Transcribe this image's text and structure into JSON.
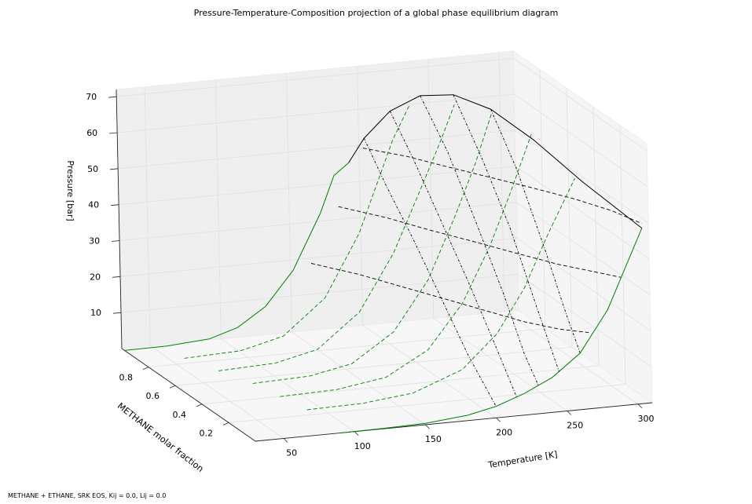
{
  "chart_data": {
    "type": "line3d",
    "title": "Pressure-Temperature-Composition projection of a global phase equilibrium diagram",
    "footnote": "METHANE + ETHANE, SRK EOS, Kij = 0.0, Lij = 0.0",
    "xlabel": "Temperature [K]",
    "ylabel": "METHANE molar fraction",
    "zlabel": "Pressure [bar]",
    "xlim": [
      30,
      310
    ],
    "ylim": [
      0,
      1
    ],
    "zlim": [
      0,
      72
    ],
    "xticks": [
      {
        "v": 50,
        "label": "50"
      },
      {
        "v": 100,
        "label": "100"
      },
      {
        "v": 150,
        "label": "150"
      },
      {
        "v": 200,
        "label": "200"
      },
      {
        "v": 250,
        "label": "250"
      },
      {
        "v": 300,
        "label": "300"
      }
    ],
    "yticks": [
      {
        "v": 0.2,
        "label": "0.2"
      },
      {
        "v": 0.4,
        "label": "0.4"
      },
      {
        "v": 0.6,
        "label": "0.6"
      },
      {
        "v": 0.8,
        "label": "0.8"
      }
    ],
    "zticks": [
      {
        "v": 10,
        "label": "10"
      },
      {
        "v": 20,
        "label": "20"
      },
      {
        "v": 30,
        "label": "30"
      },
      {
        "v": 40,
        "label": "40"
      },
      {
        "v": 50,
        "label": "50"
      },
      {
        "v": 60,
        "label": "60"
      },
      {
        "v": 70,
        "label": "70"
      }
    ],
    "grid": true,
    "colors": {
      "pure_vapor_pressure": "#008000",
      "critical_line": "#000000",
      "isopleth": "#008000",
      "isotherm": "#000000",
      "isobar": "#000000"
    },
    "series": {
      "pure_methane_vapor_pressure": {
        "x": 0.98,
        "T": [
          30,
          60,
          90,
          110,
          130,
          150,
          170,
          180,
          190.6
        ],
        "P": [
          0.0,
          0.1,
          0.9,
          3.3,
          8.4,
          17.7,
          32.8,
          42.8,
          46.0
        ]
      },
      "critical_line": {
        "T": [
          190.6,
          200,
          215,
          230,
          245,
          260,
          275,
          290,
          305.3
        ],
        "x": [
          0.98,
          0.96,
          0.92,
          0.85,
          0.76,
          0.64,
          0.48,
          0.28,
          0.0
        ],
        "P": [
          46.0,
          53.0,
          61.0,
          66.5,
          68.5,
          67.0,
          62.0,
          55.0,
          48.7
        ]
      },
      "pure_ethane_vapor_pressure": {
        "x": 0.0,
        "T": [
          90,
          120,
          150,
          180,
          200,
          220,
          240,
          260,
          280,
          305.3
        ],
        "P": [
          0.0,
          0.1,
          0.4,
          1.5,
          3.2,
          6.0,
          9.7,
          15.7,
          27.0,
          48.7
        ]
      },
      "isopleths": [
        {
          "x": 0.85,
          "T": [
            60,
            100,
            130,
            160,
            185,
            200,
            210,
            222
          ],
          "P": [
            0.0,
            0.6,
            3.5,
            13.0,
            30.0,
            45.0,
            55.0,
            64.0
          ]
        },
        {
          "x": 0.7,
          "T": [
            70,
            110,
            140,
            170,
            195,
            215,
            230,
            240
          ],
          "P": [
            0.0,
            0.6,
            3.3,
            12.5,
            28.0,
            45.0,
            58.0,
            67.5
          ]
        },
        {
          "x": 0.55,
          "T": [
            80,
            120,
            150,
            180,
            205,
            225,
            240,
            252
          ],
          "P": [
            0.0,
            0.5,
            2.8,
            10.5,
            24.0,
            41.0,
            55.0,
            68.3
          ]
        },
        {
          "x": 0.4,
          "T": [
            85,
            125,
            160,
            190,
            215,
            235,
            250,
            266
          ],
          "P": [
            0.0,
            0.4,
            2.5,
            9.0,
            21.0,
            36.0,
            50.0,
            66.0
          ]
        },
        {
          "x": 0.25,
          "T": [
            90,
            130,
            165,
            200,
            225,
            245,
            262,
            282
          ],
          "P": [
            0.0,
            0.3,
            1.8,
            7.0,
            16.0,
            28.0,
            42.0,
            57.0
          ]
        }
      ],
      "isobars": [
        {
          "P": 20,
          "x": [
            0.95,
            0.8,
            0.65,
            0.5,
            0.35,
            0.2,
            0.1,
            0.04
          ],
          "T": [
            160,
            180,
            195,
            210,
            225,
            240,
            255,
            270
          ]
        },
        {
          "P": 35,
          "x": [
            0.95,
            0.8,
            0.65,
            0.5,
            0.35,
            0.2,
            0.1,
            0.02
          ],
          "T": [
            180,
            200,
            215,
            232,
            248,
            265,
            280,
            292
          ]
        },
        {
          "P": 50,
          "x": [
            0.97,
            0.85,
            0.72,
            0.58,
            0.45,
            0.3,
            0.15,
            0.0
          ],
          "T": [
            200,
            220,
            235,
            252,
            268,
            285,
            298,
            305.3
          ]
        }
      ],
      "isotherms": [
        {
          "T": 200,
          "x": [
            0.96,
            0.8,
            0.6,
            0.4,
            0.2,
            0.0
          ],
          "P": [
            53.0,
            44.0,
            34.0,
            23.0,
            12.0,
            3.2
          ]
        },
        {
          "T": 215,
          "x": [
            0.92,
            0.75,
            0.55,
            0.35,
            0.15,
            0.0
          ],
          "P": [
            61.0,
            52.0,
            40.0,
            28.0,
            15.0,
            4.8
          ]
        },
        {
          "T": 230,
          "x": [
            0.85,
            0.65,
            0.45,
            0.25,
            0.1,
            0.0
          ],
          "P": [
            66.5,
            56.0,
            42.0,
            27.0,
            14.0,
            8.0
          ]
        },
        {
          "T": 245,
          "x": [
            0.76,
            0.55,
            0.35,
            0.15,
            0.0
          ],
          "P": [
            68.5,
            56.0,
            42.0,
            24.0,
            11.0
          ]
        },
        {
          "T": 260,
          "x": [
            0.64,
            0.45,
            0.25,
            0.1,
            0.0
          ],
          "P": [
            67.0,
            55.0,
            38.0,
            24.0,
            15.7
          ]
        }
      ]
    }
  }
}
